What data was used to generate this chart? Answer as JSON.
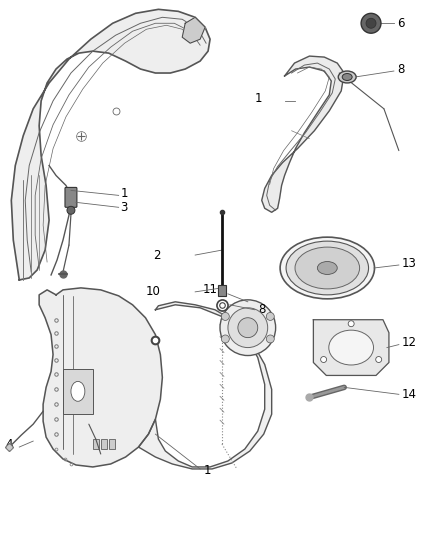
{
  "background_color": "#ffffff",
  "line_color": "#333333",
  "panel_face": "#f0f0f0",
  "panel_edge": "#555555",
  "dark_gray": "#444444",
  "medium_gray": "#888888"
}
